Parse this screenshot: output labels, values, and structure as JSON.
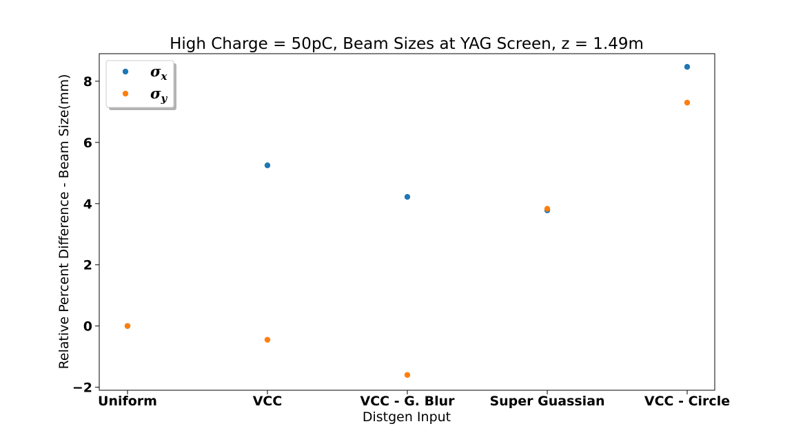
{
  "chart_data": {
    "type": "scatter",
    "title": "High Charge = 50pC, Beam Sizes at YAG Screen, z = 1.49m",
    "xlabel": "Distgen Input",
    "ylabel": "Relative Percent Difference - Beam Size(mm)",
    "categories": [
      "Uniform",
      "VCC",
      "VCC - G. Blur",
      "Super Guassian",
      "VCC - Circle"
    ],
    "ylim": [
      -2.1,
      8.9
    ],
    "yticks": [
      -2,
      0,
      2,
      4,
      6,
      8
    ],
    "ytick_labels": [
      "−2",
      "0",
      "2",
      "4",
      "6",
      "8"
    ],
    "grid": false,
    "legend_position": "top-left",
    "series": [
      {
        "name": "σ",
        "subscript": "x",
        "color": "#1f77b4",
        "values": [
          0.0,
          5.25,
          4.22,
          3.78,
          8.47
        ]
      },
      {
        "name": "σ",
        "subscript": "y",
        "color": "#ff7f0e",
        "values": [
          0.0,
          -0.45,
          -1.6,
          3.83,
          7.3
        ]
      }
    ]
  }
}
